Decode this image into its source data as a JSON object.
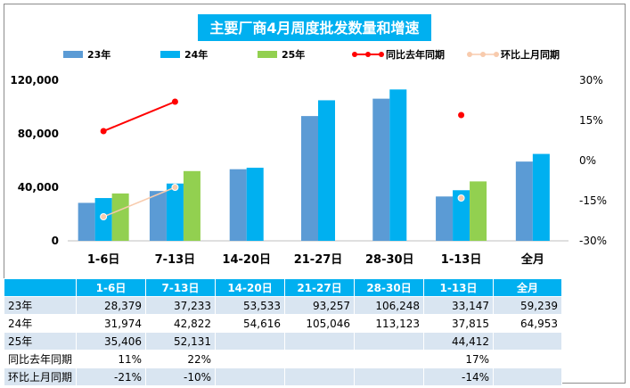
{
  "colors": {
    "s23": "#5b9bd5",
    "s24": "#00b0f0",
    "s25": "#92d050",
    "yoy": "#ff0000",
    "mom": "#f8cbad",
    "title_bg": "#00b0f0",
    "header_bg": "#00b0f0",
    "row_alt_bg": "#d9e5f1"
  },
  "chart_data": {
    "type": "bar",
    "title": "主要厂商4月周度批发数量和增速",
    "categories": [
      "1-6日",
      "7-13日",
      "14-20日",
      "21-27日",
      "28-30日",
      "1-13日",
      "全月"
    ],
    "series": [
      {
        "name": "23年",
        "kind": "bar",
        "axis": "left",
        "values": [
          28379,
          37233,
          53533,
          93257,
          106248,
          33147,
          59239
        ]
      },
      {
        "name": "24年",
        "kind": "bar",
        "axis": "left",
        "values": [
          31974,
          42822,
          54616,
          105046,
          113123,
          37815,
          64953
        ]
      },
      {
        "name": "25年",
        "kind": "bar",
        "axis": "left",
        "values": [
          35406,
          52131,
          null,
          null,
          null,
          44412,
          null
        ]
      },
      {
        "name": "同比去年同期",
        "kind": "line",
        "axis": "right",
        "values": [
          11,
          22,
          null,
          null,
          null,
          17,
          null
        ]
      },
      {
        "name": "环比上月同期",
        "kind": "line",
        "axis": "right",
        "values": [
          -21,
          -10,
          null,
          null,
          null,
          -14,
          null
        ]
      }
    ],
    "y_left": {
      "min": 0,
      "max": 120000,
      "ticks": [
        0,
        40000,
        80000,
        120000
      ],
      "tick_labels": [
        "0",
        "40,000",
        "80,000",
        "120,000"
      ]
    },
    "y_right": {
      "min": -30,
      "max": 30,
      "ticks": [
        -30,
        -15,
        0,
        15,
        30
      ],
      "tick_labels": [
        "-30%",
        "-15%",
        "0%",
        "15%",
        "30%"
      ]
    },
    "legend_position": "top"
  },
  "table": {
    "headers": [
      "",
      "1-6日",
      "7-13日",
      "14-20日",
      "21-27日",
      "28-30日",
      "1-13日",
      "全月"
    ],
    "rows": [
      [
        "23年",
        "28,379",
        "37,233",
        "53,533",
        "93,257",
        "106,248",
        "33,147",
        "59,239"
      ],
      [
        "24年",
        "31,974",
        "42,822",
        "54,616",
        "105,046",
        "113,123",
        "37,815",
        "64,953"
      ],
      [
        "25年",
        "35,406",
        "52,131",
        "",
        "",
        "",
        "44,412",
        ""
      ],
      [
        "同比去年同期",
        "11%",
        "22%",
        "",
        "",
        "",
        "17%",
        ""
      ],
      [
        "环比上月同期",
        "-21%",
        "-10%",
        "",
        "",
        "",
        "-14%",
        ""
      ]
    ]
  }
}
